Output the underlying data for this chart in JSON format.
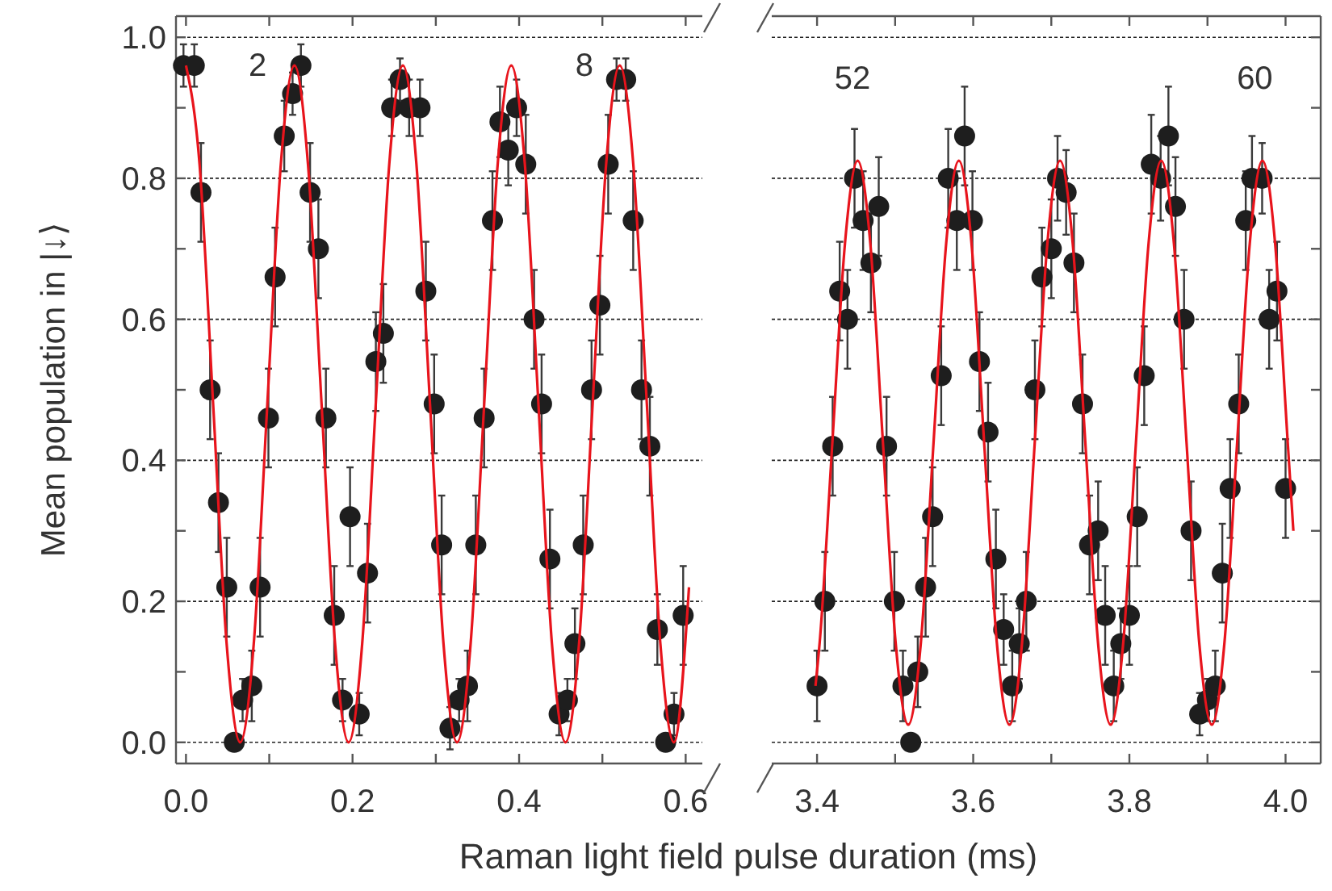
{
  "chart_data": [
    {
      "type": "scatter",
      "ylabel": "Mean population in |↓⟩",
      "xlabel": "Raman light field pulse duration (ms)",
      "xlim": [
        -0.012,
        0.62
      ],
      "ylim": [
        -0.03,
        1.03
      ],
      "xticks": [
        {
          "value": 0,
          "label": "0.0"
        },
        {
          "value": 0.1,
          "label": null
        },
        0.2,
        {
          "value": 0.3,
          "label": null
        },
        0.4,
        {
          "value": 0.5,
          "label": null
        },
        0.6
      ],
      "yticks": [
        {
          "value": 0,
          "label": "0.0"
        },
        {
          "value": 0.1,
          "label": null
        },
        0.2,
        {
          "value": 0.3,
          "label": null
        },
        0.4,
        {
          "value": 0.5,
          "label": null
        },
        0.6,
        {
          "value": 0.7,
          "label": null
        },
        0.8,
        {
          "value": 0.9,
          "label": null
        },
        {
          "value": 1,
          "label": "1.0"
        }
      ],
      "grid": "y",
      "annotations": [
        "2",
        "8"
      ],
      "series": [
        {
          "marker": "circle",
          "color": "#1e1e1e",
          "x": [
            -0.003,
            0.01,
            0.018,
            0.029,
            0.039,
            0.049,
            0.058,
            0.068,
            0.079,
            0.089,
            0.099,
            0.107,
            0.118,
            0.128,
            0.138,
            0.149,
            0.159,
            0.168,
            0.178,
            0.188,
            0.197,
            0.208,
            0.218,
            0.228,
            0.237,
            0.247,
            0.257,
            0.268,
            0.281,
            0.288,
            0.298,
            0.307,
            0.317,
            0.328,
            0.338,
            0.348,
            0.358,
            0.368,
            0.377,
            0.387,
            0.397,
            0.408,
            0.418,
            0.427,
            0.437,
            0.448,
            0.458,
            0.467,
            0.477,
            0.487,
            0.497,
            0.507,
            0.517,
            0.528,
            0.537,
            0.547,
            0.557,
            0.566,
            0.576,
            0.586,
            0.597
          ],
          "values": [
            0.96,
            0.96,
            0.78,
            0.5,
            0.34,
            0.22,
            0.0,
            0.06,
            0.08,
            0.22,
            0.46,
            0.66,
            0.86,
            0.92,
            0.96,
            0.78,
            0.7,
            0.46,
            0.18,
            0.06,
            0.32,
            0.04,
            0.24,
            0.54,
            0.58,
            0.9,
            0.94,
            0.9,
            0.9,
            0.64,
            0.48,
            0.28,
            0.02,
            0.06,
            0.08,
            0.28,
            0.46,
            0.74,
            0.88,
            0.84,
            0.9,
            0.82,
            0.6,
            0.48,
            0.26,
            0.04,
            0.06,
            0.14,
            0.28,
            0.5,
            0.62,
            0.82,
            0.94,
            0.94,
            0.74,
            0.5,
            0.42,
            0.16,
            0.0,
            0.04,
            0.18
          ],
          "errors": [
            0.03,
            0.03,
            0.07,
            0.07,
            0.07,
            0.07,
            null,
            0.03,
            0.05,
            0.07,
            0.07,
            0.07,
            0.05,
            0.03,
            0.03,
            0.07,
            0.07,
            0.07,
            0.07,
            0.03,
            0.07,
            0.03,
            0.07,
            0.07,
            0.07,
            0.04,
            0.03,
            0.04,
            0.04,
            0.07,
            0.07,
            0.07,
            0.03,
            0.03,
            0.05,
            0.07,
            0.07,
            0.07,
            0.05,
            0.05,
            0.04,
            0.07,
            0.07,
            0.07,
            0.07,
            0.03,
            0.03,
            0.05,
            0.07,
            0.07,
            0.07,
            0.07,
            0.03,
            0.03,
            0.07,
            0.07,
            0.07,
            0.05,
            null,
            0.03,
            0.07
          ]
        },
        {
          "type": "line",
          "line_style": "solid",
          "color": "#e8141c",
          "x": [
            0,
            0.0163,
            0.0326,
            0.0488,
            0.0651,
            0.0814,
            0.0977,
            0.1139,
            0.1302,
            0.1465,
            0.1628,
            0.179,
            0.1953,
            0.2116,
            0.2279,
            0.2441,
            0.2604,
            0.2767,
            0.293,
            0.3092,
            0.3255,
            0.3418,
            0.3581,
            0.3743,
            0.3906,
            0.4069,
            0.4232,
            0.4394,
            0.4557,
            0.472,
            0.4883,
            0.5045,
            0.5208,
            0.5371,
            0.5534,
            0.5696,
            0.5859,
            0.604
          ],
          "values": [
            0.96,
            0.82,
            0.48,
            0.14,
            0.0,
            0.14,
            0.48,
            0.82,
            0.96,
            0.82,
            0.48,
            0.14,
            0.0,
            0.14,
            0.48,
            0.82,
            0.96,
            0.82,
            0.48,
            0.14,
            0.0,
            0.14,
            0.48,
            0.82,
            0.96,
            0.82,
            0.48,
            0.14,
            0.0,
            0.14,
            0.48,
            0.82,
            0.96,
            0.82,
            0.48,
            0.14,
            0.0,
            0.22
          ]
        }
      ]
    },
    {
      "type": "scatter",
      "xlim": [
        3.342,
        4.045
      ],
      "ylim": [
        -0.03,
        1.03
      ],
      "tick_labels": "x",
      "xticks": [
        3.4,
        {
          "value": 3.5,
          "label": null
        },
        3.6,
        {
          "value": 3.7,
          "label": null
        },
        3.8,
        {
          "value": 3.9,
          "label": null
        },
        {
          "value": 4,
          "label": "4.0"
        }
      ],
      "yticks": [
        {
          "value": 0,
          "label": null
        },
        {
          "value": 0.1,
          "label": null
        },
        {
          "value": 0.2,
          "label": null
        },
        {
          "value": 0.3,
          "label": null
        },
        {
          "value": 0.4,
          "label": null
        },
        {
          "value": 0.5,
          "label": null
        },
        {
          "value": 0.6,
          "label": null
        },
        {
          "value": 0.7,
          "label": null
        },
        {
          "value": 0.8,
          "label": null
        },
        {
          "value": 0.9,
          "label": null
        },
        {
          "value": 1,
          "label": null
        }
      ],
      "grid": "y",
      "annotations": [
        "52",
        "60"
      ],
      "series": [
        {
          "marker": "circle",
          "color": "#1e1e1e",
          "x": [
            3.4,
            3.41,
            3.42,
            3.429,
            3.439,
            3.448,
            3.459,
            3.469,
            3.479,
            3.489,
            3.499,
            3.51,
            3.52,
            3.529,
            3.539,
            3.548,
            3.559,
            3.568,
            3.579,
            3.589,
            3.599,
            3.608,
            3.619,
            3.629,
            3.639,
            3.65,
            3.659,
            3.668,
            3.679,
            3.688,
            3.7,
            3.708,
            3.719,
            3.729,
            3.74,
            3.749,
            3.76,
            3.769,
            3.78,
            3.789,
            3.8,
            3.81,
            3.819,
            3.828,
            3.84,
            3.85,
            3.859,
            3.87,
            3.879,
            3.89,
            3.9,
            3.91,
            3.919,
            3.929,
            3.94,
            3.949,
            3.957,
            3.97,
            3.979,
            3.989,
            4.0
          ],
          "values": [
            0.08,
            0.2,
            0.42,
            0.64,
            0.6,
            0.8,
            0.74,
            0.68,
            0.76,
            0.42,
            0.2,
            0.08,
            0.0,
            0.1,
            0.22,
            0.32,
            0.52,
            0.8,
            0.74,
            0.86,
            0.74,
            0.54,
            0.44,
            0.26,
            0.16,
            0.08,
            0.14,
            0.2,
            0.5,
            0.66,
            0.7,
            0.8,
            0.78,
            0.68,
            0.48,
            0.28,
            0.3,
            0.18,
            0.08,
            0.14,
            0.18,
            0.32,
            0.52,
            0.82,
            0.8,
            0.86,
            0.76,
            0.6,
            0.3,
            0.04,
            0.06,
            0.08,
            0.24,
            0.36,
            0.48,
            0.74,
            0.8,
            0.8,
            0.6,
            0.64,
            0.36
          ],
          "errors": [
            0.05,
            0.07,
            0.07,
            0.07,
            0.07,
            0.07,
            0.07,
            0.07,
            0.07,
            0.07,
            0.07,
            0.05,
            null,
            0.05,
            0.07,
            0.07,
            0.07,
            0.07,
            0.07,
            0.07,
            0.07,
            0.07,
            0.07,
            0.07,
            0.05,
            0.05,
            0.05,
            0.07,
            0.07,
            0.07,
            0.07,
            0.06,
            0.06,
            0.07,
            0.07,
            0.07,
            0.07,
            0.07,
            0.05,
            0.05,
            0.07,
            0.07,
            0.07,
            0.07,
            0.06,
            0.07,
            0.07,
            0.07,
            0.07,
            0.03,
            0.03,
            0.05,
            0.07,
            0.07,
            0.07,
            0.07,
            0.06,
            0.05,
            0.07,
            0.07,
            0.07
          ]
        },
        {
          "type": "line",
          "line_style": "solid",
          "color": "#e8141c",
          "x": [
            3.398,
            3.4034,
            3.4196,
            3.4358,
            3.452,
            3.4682,
            3.4844,
            3.5006,
            3.5168,
            3.533,
            3.5492,
            3.5654,
            3.5816,
            3.5978,
            3.614,
            3.6302,
            3.6464,
            3.6626,
            3.6788,
            3.695,
            3.7112,
            3.7274,
            3.7436,
            3.7598,
            3.776,
            3.7922,
            3.8084,
            3.8246,
            3.8408,
            3.857,
            3.8732,
            3.8894,
            3.9056,
            3.9218,
            3.938,
            3.9542,
            3.9704,
            3.9866,
            4.0028,
            4.01
          ],
          "values": [
            0.08,
            0.142,
            0.425,
            0.708,
            0.825,
            0.708,
            0.425,
            0.142,
            0.025,
            0.142,
            0.425,
            0.708,
            0.825,
            0.708,
            0.425,
            0.142,
            0.025,
            0.142,
            0.425,
            0.708,
            0.825,
            0.708,
            0.425,
            0.142,
            0.025,
            0.142,
            0.425,
            0.708,
            0.825,
            0.708,
            0.425,
            0.142,
            0.025,
            0.142,
            0.425,
            0.708,
            0.825,
            0.708,
            0.425,
            0.3
          ]
        }
      ]
    }
  ]
}
